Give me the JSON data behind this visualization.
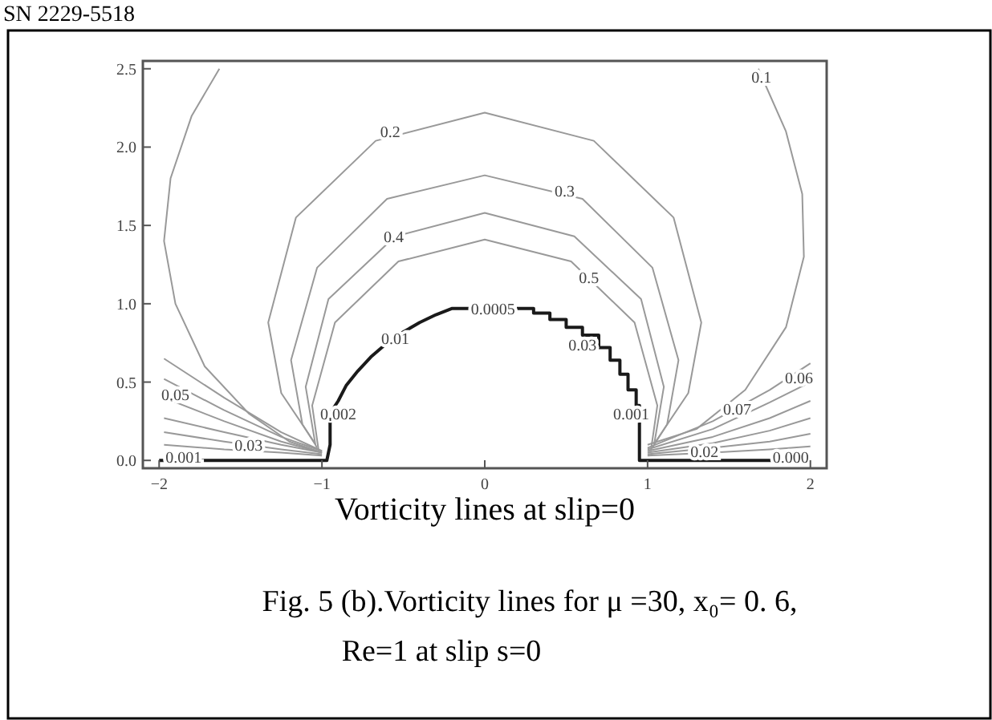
{
  "chart_data": {
    "type": "line",
    "xlabel": "Vorticity lines at slip=0",
    "xlim": [
      -2.1,
      2.1
    ],
    "ylim": [
      -0.05,
      2.55
    ],
    "xticks": [
      {
        "value": -2,
        "label": "−2"
      },
      {
        "value": -1,
        "label": "−1"
      },
      0,
      1,
      2
    ],
    "yticks": [
      {
        "value": 0,
        "label": "0.0"
      },
      0.5,
      {
        "value": 1,
        "label": "1.0"
      },
      1.5,
      {
        "value": 2,
        "label": "2.0"
      },
      2.5
    ],
    "series": [
      {
        "color": "#1a1a1a",
        "x": [
          -2,
          -0.97,
          -0.95,
          -0.95,
          -0.9,
          -0.85,
          -0.78,
          -0.7,
          -0.6,
          -0.5,
          -0.4,
          -0.3,
          -0.2,
          0.3,
          0.3,
          0.4,
          0.4,
          0.5,
          0.5,
          0.6,
          0.6,
          0.7,
          0.7,
          0.77,
          0.77,
          0.83,
          0.83,
          0.88,
          0.88,
          0.93,
          0.93,
          0.95,
          0.95,
          2
        ],
        "values": [
          0,
          0,
          0.1,
          0.3,
          0.38,
          0.48,
          0.57,
          0.66,
          0.75,
          0.82,
          0.88,
          0.93,
          0.97,
          0.97,
          0.94,
          0.94,
          0.9,
          0.9,
          0.85,
          0.85,
          0.8,
          0.8,
          0.72,
          0.72,
          0.64,
          0.64,
          0.55,
          0.55,
          0.45,
          0.45,
          0.35,
          0.35,
          0,
          0
        ]
      },
      {
        "color": "#999999",
        "x": [
          -1.63,
          -1.8,
          -1.93,
          -1.97,
          -1.9,
          -1.72,
          -1.45,
          -1.2,
          -1,
          0,
          1,
          1.3,
          1.6,
          1.85,
          1.96,
          1.95,
          1.85,
          1.68
        ],
        "values": [
          2.5,
          2.2,
          1.8,
          1.4,
          1,
          0.6,
          0.3,
          0.12,
          0.05,
          null,
          0.1,
          0.2,
          0.45,
          0.85,
          1.3,
          1.7,
          2.1,
          2.5
        ]
      },
      {
        "color": "#999999",
        "x": [
          -1.05,
          -1.25,
          -1.33,
          -1.16,
          -0.67,
          0,
          0.67,
          1.16,
          1.33,
          1.25,
          1.05
        ],
        "values": [
          0.12,
          0.43,
          0.88,
          1.55,
          2.04,
          2.22,
          2.04,
          1.55,
          0.88,
          0.43,
          0.12
        ]
      },
      {
        "color": "#999999",
        "x": [
          -1.04,
          -1.12,
          -1.19,
          -1.03,
          -0.6,
          0,
          0.6,
          1.03,
          1.19,
          1.12,
          1.04
        ],
        "values": [
          0.1,
          0.23,
          0.64,
          1.23,
          1.67,
          1.82,
          1.67,
          1.23,
          0.64,
          0.23,
          0.1
        ]
      },
      {
        "color": "#999999",
        "x": [
          -1.03,
          -1.04,
          -1.1,
          -0.96,
          -0.55,
          0,
          0.55,
          0.96,
          1.1,
          1.04,
          1.03
        ],
        "values": [
          0.08,
          0.1,
          0.47,
          1.03,
          1.43,
          1.58,
          1.43,
          1.03,
          0.47,
          0.1,
          0.08
        ]
      },
      {
        "color": "#999999",
        "x": [
          -1.02,
          -1.06,
          -0.92,
          -0.53,
          0,
          0.53,
          0.92,
          1.06,
          1.02
        ],
        "values": [
          0.06,
          0.35,
          0.88,
          1.27,
          1.41,
          1.27,
          0.88,
          0.35,
          0.06
        ]
      },
      {
        "color": "#999999",
        "x": [
          -1.97,
          -1.6,
          -1.25,
          -1
        ],
        "values": [
          0.65,
          0.4,
          0.18,
          0.06
        ]
      },
      {
        "color": "#999999",
        "x": [
          -1.97,
          -1.6,
          -1.25,
          -1
        ],
        "values": [
          0.52,
          0.32,
          0.15,
          0.06
        ]
      },
      {
        "color": "#999999",
        "x": [
          -1.97,
          -1.6,
          -1.25,
          -1
        ],
        "values": [
          0.4,
          0.25,
          0.12,
          0.05
        ]
      },
      {
        "color": "#999999",
        "x": [
          -1.97,
          -1.6,
          -1.25,
          -1
        ],
        "values": [
          0.27,
          0.18,
          0.1,
          0.05
        ]
      },
      {
        "color": "#999999",
        "x": [
          -1.97,
          -1.6,
          -1.25,
          -1
        ],
        "values": [
          0.18,
          0.12,
          0.07,
          0.04
        ]
      },
      {
        "color": "#999999",
        "x": [
          -1.97,
          -1.6,
          -1.25,
          -1
        ],
        "values": [
          0.1,
          0.07,
          0.05,
          0.03
        ]
      },
      {
        "color": "#999999",
        "x": [
          1,
          1.4,
          1.75,
          2
        ],
        "values": [
          0.08,
          0.25,
          0.45,
          0.62
        ]
      },
      {
        "color": "#999999",
        "x": [
          1,
          1.4,
          1.75,
          2
        ],
        "values": [
          0.07,
          0.2,
          0.37,
          0.5
        ]
      },
      {
        "color": "#999999",
        "x": [
          1,
          1.4,
          1.75,
          2
        ],
        "values": [
          0.06,
          0.15,
          0.27,
          0.38
        ]
      },
      {
        "color": "#999999",
        "x": [
          1,
          1.4,
          1.75,
          2
        ],
        "values": [
          0.05,
          0.11,
          0.19,
          0.27
        ]
      },
      {
        "color": "#999999",
        "x": [
          1,
          1.4,
          1.75,
          2
        ],
        "values": [
          0.04,
          0.08,
          0.12,
          0.17
        ]
      },
      {
        "color": "#999999",
        "x": [
          1,
          1.4,
          1.75,
          2
        ],
        "values": [
          0.03,
          0.05,
          0.07,
          0.09
        ]
      }
    ],
    "annotations": [
      "SN 2229-5518",
      "Fig. 5 (b).Vorticity lines for μ =30, x₀= 0. 6,",
      "Re=1 at slip s=0",
      {
        "text": "0.1",
        "x": 1.7,
        "y": 2.45
      },
      {
        "text": "0.2",
        "x": -0.58,
        "y": 2.1
      },
      {
        "text": "0.3",
        "x": 0.49,
        "y": 1.72
      },
      {
        "text": "0.4",
        "x": -0.56,
        "y": 1.43
      },
      {
        "text": "0.5",
        "x": 0.64,
        "y": 1.17
      },
      {
        "text": "0.0005",
        "x": 0.05,
        "y": 0.97
      },
      {
        "text": "0.01",
        "x": -0.55,
        "y": 0.78
      },
      {
        "text": "0.03",
        "x": 0.6,
        "y": 0.74
      },
      {
        "text": "0.002",
        "x": -0.9,
        "y": 0.3
      },
      {
        "text": "0.001",
        "x": 0.9,
        "y": 0.3
      },
      {
        "text": "0.05",
        "x": -1.9,
        "y": 0.42
      },
      {
        "text": "0.03",
        "x": -1.45,
        "y": 0.1
      },
      {
        "text": "0.001",
        "x": -1.85,
        "y": 0.02
      },
      {
        "text": "0.06",
        "x": 1.93,
        "y": 0.53
      },
      {
        "text": "0.07",
        "x": 1.55,
        "y": 0.33
      },
      {
        "text": "0.02",
        "x": 1.35,
        "y": 0.06
      },
      {
        "text": "0.000",
        "x": 1.88,
        "y": 0.02
      }
    ]
  }
}
